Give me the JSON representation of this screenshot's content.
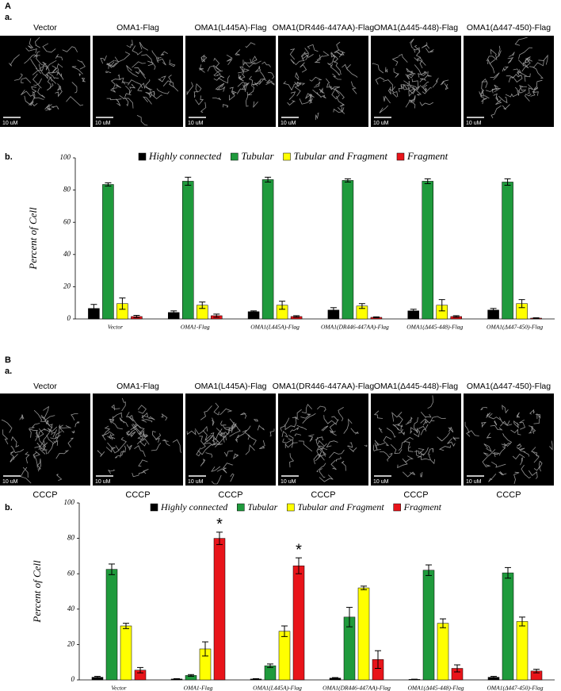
{
  "figure": {
    "panel_A": {
      "label": "A",
      "sub_a": "a.",
      "sub_b": "b.",
      "images": [
        {
          "title": "Vector",
          "scale": "10 uM"
        },
        {
          "title": "OMA1-Flag",
          "scale": "10 uM"
        },
        {
          "title": "OMA1(L445A)-Flag",
          "scale": "10 uM"
        },
        {
          "title": "OMA1(DR446-447AA)-Flag",
          "scale": "10 uM"
        },
        {
          "title": "OMA1(Δ445-448)-Flag",
          "scale": "10 uM"
        },
        {
          "title": "OMA1(Δ447-450)-Flag",
          "scale": "10 uM"
        }
      ]
    },
    "panel_B": {
      "label": "B",
      "sub_a": "a.",
      "sub_b": "b.",
      "images": [
        {
          "title": "Vector",
          "scale": "10 uM",
          "treatment": "CCCP"
        },
        {
          "title": "OMA1-Flag",
          "scale": "10 uM",
          "treatment": "CCCP"
        },
        {
          "title": "OMA1(L445A)-Flag",
          "scale": "10 uM",
          "treatment": "CCCP"
        },
        {
          "title": "OMA1(DR446-447AA)-Flag",
          "scale": "10 uM",
          "treatment": "CCCP"
        },
        {
          "title": "OMA1(Δ445-448)-Flag",
          "scale": "10 uM",
          "treatment": "CCCP"
        },
        {
          "title": "OMA1(Δ447-450)-Flag",
          "scale": "10 uM",
          "treatment": "CCCP"
        }
      ]
    }
  },
  "chart_data": [
    {
      "type": "bar",
      "y_label": "Percent of Cell",
      "ylim": [
        0,
        100
      ],
      "yticks": [
        0,
        20,
        40,
        60,
        80,
        100
      ],
      "grid": false,
      "legend": "top",
      "categories": [
        "Vector",
        "OMA1-Flag",
        "OMA1(L445A)-Flag",
        "OMA1(DR446-447AA)-Flag",
        "OMA1(Δ445-448)-Flag",
        "OMA1(Δ447-450)-Flag"
      ],
      "series": [
        {
          "name": "Highly connected",
          "color": "#000000",
          "values": [
            6.5,
            4,
            4.5,
            5.5,
            5,
            5.5
          ],
          "errors": [
            2.5,
            1,
            0.5,
            1.5,
            1,
            1
          ]
        },
        {
          "name": "Tubular",
          "color": "#1f9a3c",
          "values": [
            83.5,
            85.5,
            86.5,
            86,
            85.5,
            85
          ],
          "errors": [
            1,
            2.5,
            1.5,
            1,
            1.5,
            2
          ]
        },
        {
          "name": "Tubular and Fragment",
          "color": "#ffff00",
          "values": [
            9.5,
            8.5,
            8.5,
            8,
            8.5,
            9.5
          ],
          "errors": [
            3.5,
            2,
            2.5,
            1.5,
            3.5,
            2.5
          ]
        },
        {
          "name": "Fragment",
          "color": "#e8141a",
          "values": [
            1.5,
            2,
            1.5,
            1,
            1.5,
            0.5
          ],
          "errors": [
            0.7,
            1,
            0.5,
            0.3,
            0.5,
            0.2
          ]
        }
      ]
    },
    {
      "type": "bar",
      "y_label": "Percent of Cell",
      "ylim": [
        0,
        100
      ],
      "yticks": [
        0,
        20,
        40,
        60,
        80,
        100
      ],
      "grid": false,
      "legend": "top",
      "categories": [
        "Vector",
        "OMA1-Flag",
        "OMA1(L445A)-Flag",
        "OMA1(DR446-447AA)-Flag",
        "OMA1(Δ445-448)-Flag",
        "OMA1(Δ447-450)-Flag"
      ],
      "series": [
        {
          "name": "Highly connected",
          "color": "#000000",
          "values": [
            1.5,
            0.5,
            0.5,
            1,
            0.3,
            1.5
          ],
          "errors": [
            0.5,
            0.2,
            0.2,
            0.3,
            0.1,
            0.5
          ]
        },
        {
          "name": "Tubular",
          "color": "#1f9a3c",
          "values": [
            62.5,
            2.5,
            8,
            35.5,
            62,
            60.5
          ],
          "errors": [
            3,
            0.5,
            1,
            5.5,
            3,
            3
          ]
        },
        {
          "name": "Tubular and Fragment",
          "color": "#ffff00",
          "values": [
            30.5,
            17.5,
            27.5,
            52,
            32,
            33
          ],
          "errors": [
            1.5,
            4,
            3,
            1,
            2.5,
            2.5
          ]
        },
        {
          "name": "Fragment",
          "color": "#e8141a",
          "values": [
            5.5,
            80,
            64.5,
            11.5,
            6.5,
            5
          ],
          "errors": [
            1.5,
            3.5,
            4.5,
            5,
            2,
            1
          ],
          "annotations": [
            null,
            "*",
            "*",
            null,
            null,
            null
          ]
        }
      ]
    }
  ]
}
